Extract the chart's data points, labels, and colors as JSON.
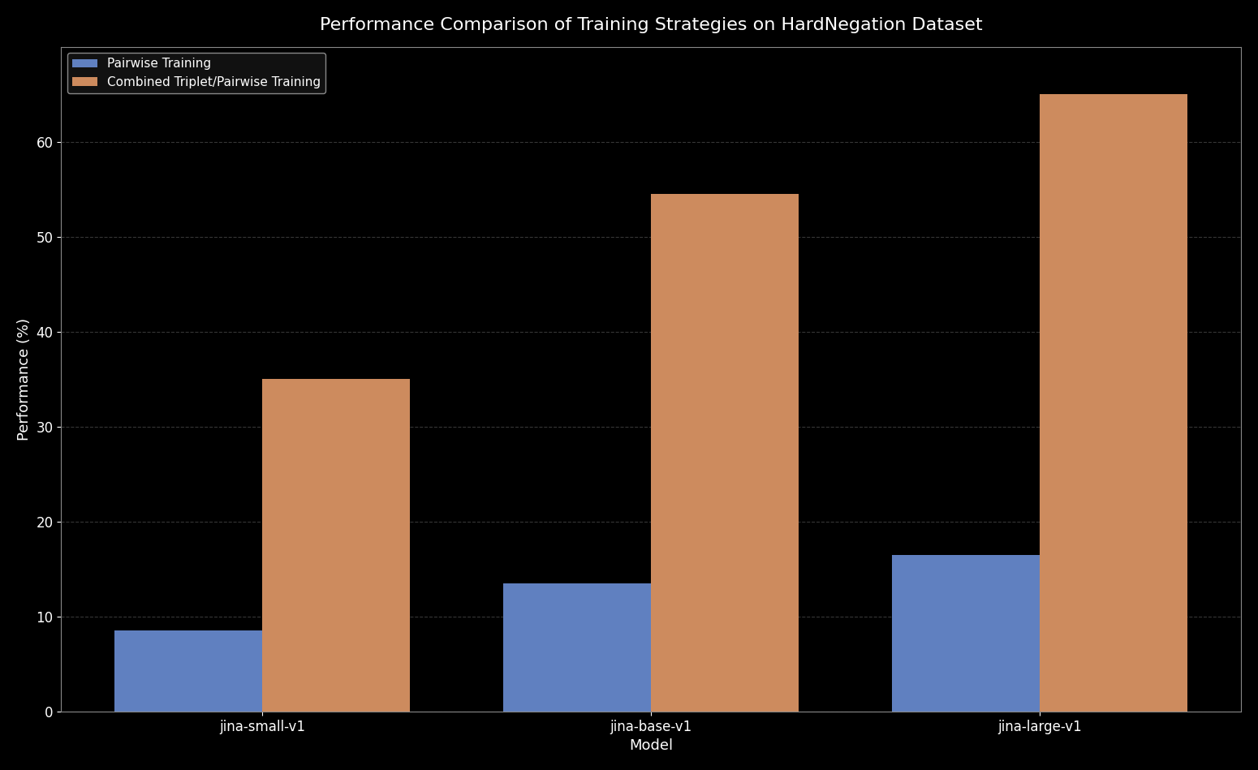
{
  "title": "Performance Comparison of Training Strategies on HardNegation Dataset",
  "xlabel": "Model",
  "ylabel": "Performance (%)",
  "categories": [
    "jina-small-v1",
    "jina-base-v1",
    "jina-large-v1"
  ],
  "series": [
    {
      "label": "Pairwise Training",
      "values": [
        8.5,
        13.5,
        16.5
      ],
      "color": "#6080c0"
    },
    {
      "label": "Combined Triplet/Pairwise Training",
      "values": [
        35.0,
        54.5,
        65.0
      ],
      "color": "#cd8b5e"
    }
  ],
  "ylim": [
    0,
    70
  ],
  "yticks": [
    0,
    10,
    20,
    30,
    40,
    50,
    60
  ],
  "background_color": "#000000",
  "plot_background_color": "#000000",
  "text_color": "#ffffff",
  "grid_color": "#444444",
  "bar_width": 0.38,
  "title_fontsize": 16,
  "axis_label_fontsize": 13,
  "tick_fontsize": 12,
  "legend_fontsize": 11
}
